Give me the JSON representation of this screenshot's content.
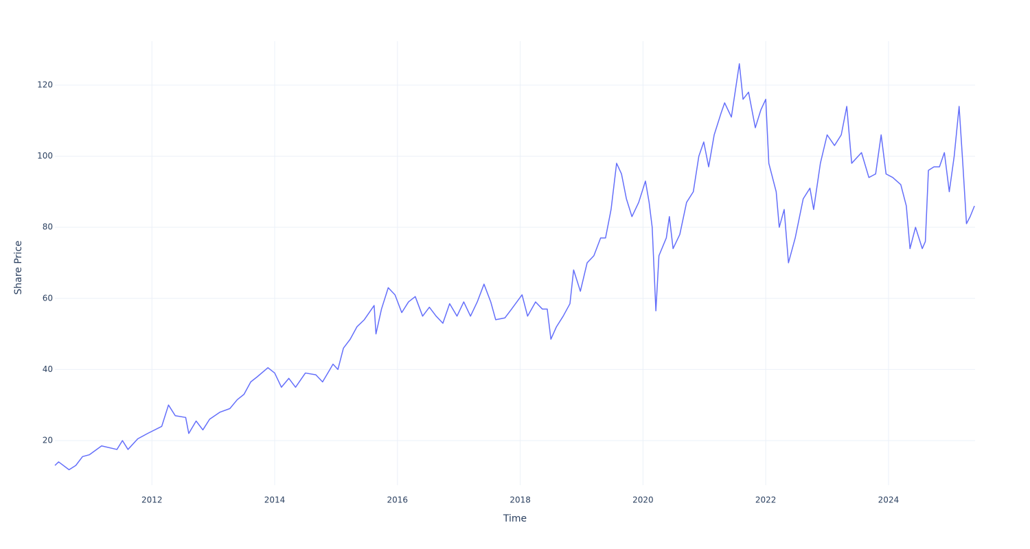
{
  "chart_data": {
    "type": "line",
    "xlabel": "Time",
    "ylabel": "Share Price",
    "x": [
      2010.42,
      2010.48,
      2010.65,
      2010.76,
      2010.87,
      2010.98,
      2011.18,
      2011.43,
      2011.52,
      2011.61,
      2011.77,
      2011.93,
      2012.16,
      2012.27,
      2012.38,
      2012.55,
      2012.6,
      2012.72,
      2012.83,
      2012.94,
      2013.11,
      2013.27,
      2013.39,
      2013.5,
      2013.61,
      2013.72,
      2013.89,
      2014.0,
      2014.11,
      2014.23,
      2014.34,
      2014.5,
      2014.67,
      2014.78,
      2014.9,
      2014.95,
      2015.03,
      2015.12,
      2015.23,
      2015.34,
      2015.46,
      2015.62,
      2015.65,
      2015.74,
      2015.85,
      2015.96,
      2016.07,
      2016.18,
      2016.29,
      2016.41,
      2016.52,
      2016.63,
      2016.74,
      2016.85,
      2016.97,
      2017.08,
      2017.19,
      2017.3,
      2017.41,
      2017.52,
      2017.6,
      2017.75,
      2017.86,
      2018.03,
      2018.12,
      2018.25,
      2018.36,
      2018.44,
      2018.5,
      2018.59,
      2018.7,
      2018.81,
      2018.87,
      2018.98,
      2019.09,
      2019.2,
      2019.31,
      2019.39,
      2019.48,
      2019.57,
      2019.65,
      2019.73,
      2019.82,
      2019.93,
      2020.04,
      2020.1,
      2020.15,
      2020.21,
      2020.26,
      2020.38,
      2020.43,
      2020.49,
      2020.6,
      2020.71,
      2020.82,
      2020.91,
      2020.99,
      2021.07,
      2021.16,
      2021.27,
      2021.33,
      2021.44,
      2021.57,
      2021.63,
      2021.72,
      2021.83,
      2021.92,
      2022.0,
      2022.05,
      2022.17,
      2022.22,
      2022.3,
      2022.37,
      2022.48,
      2022.61,
      2022.72,
      2022.78,
      2022.89,
      2023.0,
      2023.12,
      2023.23,
      2023.32,
      2023.4,
      2023.56,
      2023.68,
      2023.79,
      2023.88,
      2023.96,
      2024.07,
      2024.2,
      2024.29,
      2024.35,
      2024.44,
      2024.55,
      2024.6,
      2024.65,
      2024.74,
      2024.83,
      2024.91,
      2024.99,
      2025.07,
      2025.15,
      2025.21,
      2025.27,
      2025.33,
      2025.4
    ],
    "series": [
      {
        "name": "Share Price",
        "color": "#636efa",
        "values": [
          13,
          14,
          11.8,
          13,
          15.5,
          16,
          18.5,
          17.5,
          20,
          17.5,
          20.5,
          22,
          24,
          30,
          27,
          26.5,
          22,
          25.5,
          23,
          26,
          28,
          29,
          31.5,
          33,
          36.5,
          38,
          40.5,
          39,
          35,
          37.5,
          35,
          39,
          38.5,
          36.5,
          40,
          41.5,
          40,
          46,
          48.5,
          52,
          54,
          58,
          50,
          57,
          63,
          61,
          56,
          59,
          60.5,
          55,
          57.5,
          55,
          53,
          58.5,
          55,
          59,
          55,
          59,
          64,
          59,
          54,
          54.5,
          57,
          61,
          55,
          59,
          57,
          57,
          48.5,
          52,
          55,
          58.5,
          68,
          62,
          70,
          72,
          77,
          77,
          85,
          98,
          95,
          88,
          83,
          87,
          93,
          87,
          80,
          56.5,
          72,
          77,
          83,
          74,
          78,
          87,
          90,
          100,
          104,
          97,
          106,
          112,
          115,
          111,
          126,
          116,
          118,
          108,
          113,
          116,
          98,
          90,
          80,
          85,
          70,
          77,
          88,
          91,
          85,
          98,
          106,
          103,
          106,
          114,
          98,
          101,
          94,
          95,
          106,
          95,
          94,
          92,
          86,
          74,
          80,
          74,
          76,
          96,
          97,
          97,
          101,
          90,
          100,
          114,
          98,
          81,
          83,
          86
        ]
      }
    ],
    "xlim": [
      2010.42,
      2025.41
    ],
    "xticks": [
      2012,
      2014,
      2016,
      2018,
      2020,
      2022,
      2024
    ],
    "ylim": [
      7.45,
      132.35
    ],
    "yticks": [
      20,
      40,
      60,
      80,
      100,
      120
    ],
    "grid": true
  }
}
